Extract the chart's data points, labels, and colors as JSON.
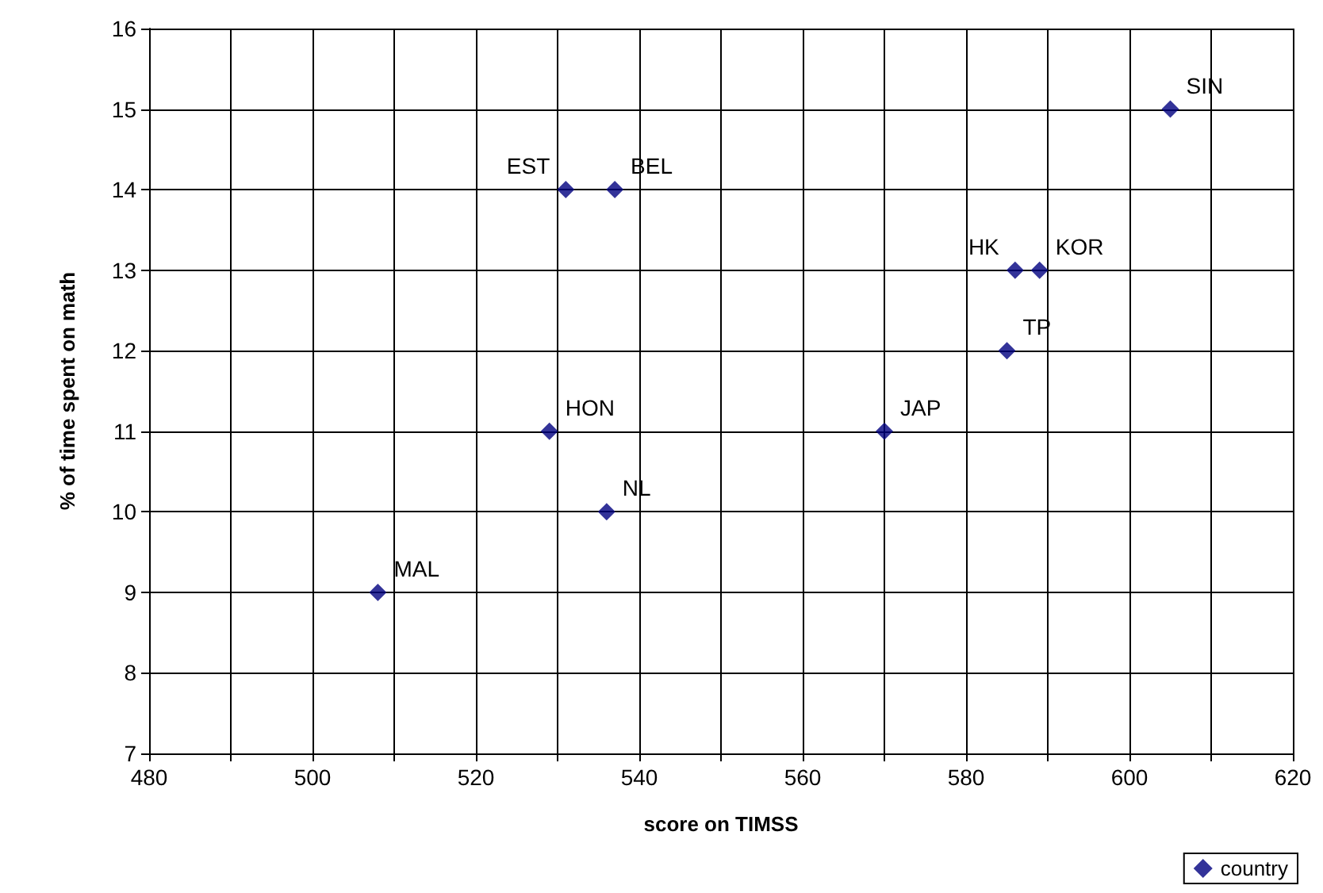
{
  "chart_data": {
    "type": "scatter",
    "xlabel": "score on TIMSS",
    "ylabel": "% of time spent on math",
    "x": [
      508,
      529,
      536,
      531,
      537,
      570,
      585,
      586,
      589,
      605
    ],
    "series": [
      {
        "name": "country",
        "color": "#000080",
        "values": [
          9,
          11,
          10,
          14,
          14,
          11,
          12,
          13,
          13,
          15
        ]
      }
    ],
    "xlim": [
      480,
      620
    ],
    "xticks": [
      480,
      {
        "value": 490,
        "label": null
      },
      500,
      {
        "value": 510,
        "label": null
      },
      520,
      {
        "value": 530,
        "label": null
      },
      540,
      {
        "value": 550,
        "label": null
      },
      560,
      {
        "value": 570,
        "label": null
      },
      580,
      {
        "value": 590,
        "label": null
      },
      600,
      {
        "value": 610,
        "label": null
      },
      620
    ],
    "ylim": [
      7,
      16
    ],
    "yticks": [
      7,
      8,
      9,
      10,
      11,
      12,
      13,
      14,
      15,
      16
    ],
    "grid": true,
    "legend": "bottom right",
    "marker": "diamond",
    "annotations": [
      {
        "text": "MAL",
        "x": 508,
        "y": 9
      },
      {
        "text": "HON",
        "x": 529,
        "y": 11
      },
      {
        "text": "NL",
        "x": 536,
        "y": 10
      },
      {
        "text": "EST",
        "x": 531,
        "y": 14
      },
      {
        "text": "BEL",
        "x": 537,
        "y": 14
      },
      {
        "text": "JAP",
        "x": 570,
        "y": 11
      },
      {
        "text": "TP",
        "x": 585,
        "y": 12
      },
      {
        "text": "HK",
        "x": 586,
        "y": 13
      },
      {
        "text": "KOR",
        "x": 589,
        "y": 13
      },
      {
        "text": "SIN",
        "x": 605,
        "y": 15
      }
    ]
  }
}
